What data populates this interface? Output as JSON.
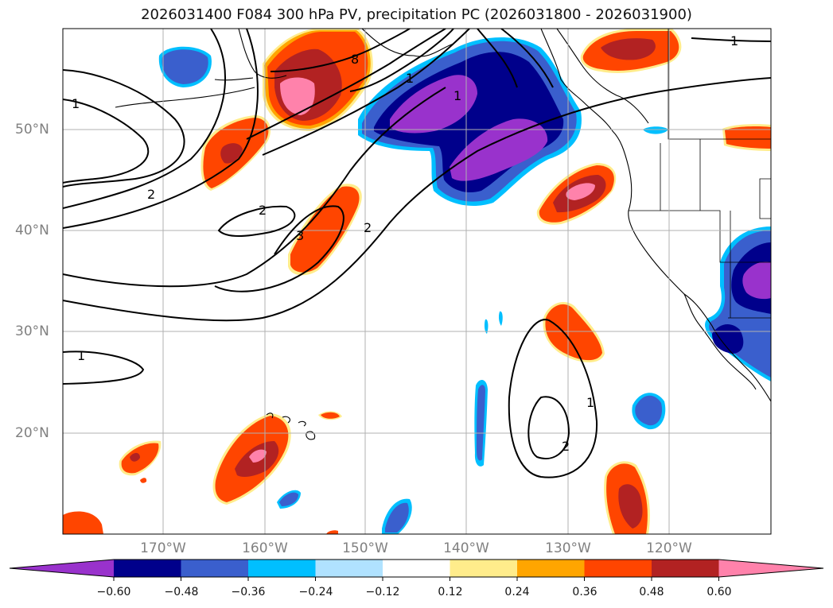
{
  "title": "2026031400 F084 300 hPa PV, precipitation PC (2026031800 - 2026031900)",
  "lat_labels": [
    "50°N",
    "40°N",
    "30°N",
    "20°N"
  ],
  "lon_labels": [
    "170°W",
    "160°W",
    "150°W",
    "140°W",
    "130°W",
    "120°W"
  ],
  "contour_labels": [
    "1",
    "1",
    "1",
    "1",
    "2",
    "2",
    "2",
    "3",
    "8",
    "1",
    "1",
    "2"
  ],
  "colorbar": {
    "labels": [
      "−0.60",
      "−0.48",
      "−0.36",
      "−0.24",
      "−0.12",
      "0.12",
      "0.24",
      "0.36",
      "0.48",
      "0.60"
    ],
    "colors": [
      "#9932cc",
      "#00008b",
      "#3a5fcd",
      "#00bfff",
      "#b0e2ff",
      "#ffffff",
      "#ffec8b",
      "#ffa500",
      "#ff4500",
      "#b22222",
      "#ff82ab"
    ]
  },
  "palette": {
    "neg_violet": "#9932cc",
    "neg_navy": "#00008b",
    "neg_blue": "#3a5fcd",
    "neg_sky": "#00bfff",
    "neg_pale": "#b0e2ff",
    "pos_yellow": "#ffec8b",
    "pos_orange": "#ffa500",
    "pos_red": "#ff4500",
    "pos_firebrick": "#b22222",
    "pos_pink": "#ff82ab",
    "grid": "#b0b0b0",
    "contour": "#000000"
  }
}
